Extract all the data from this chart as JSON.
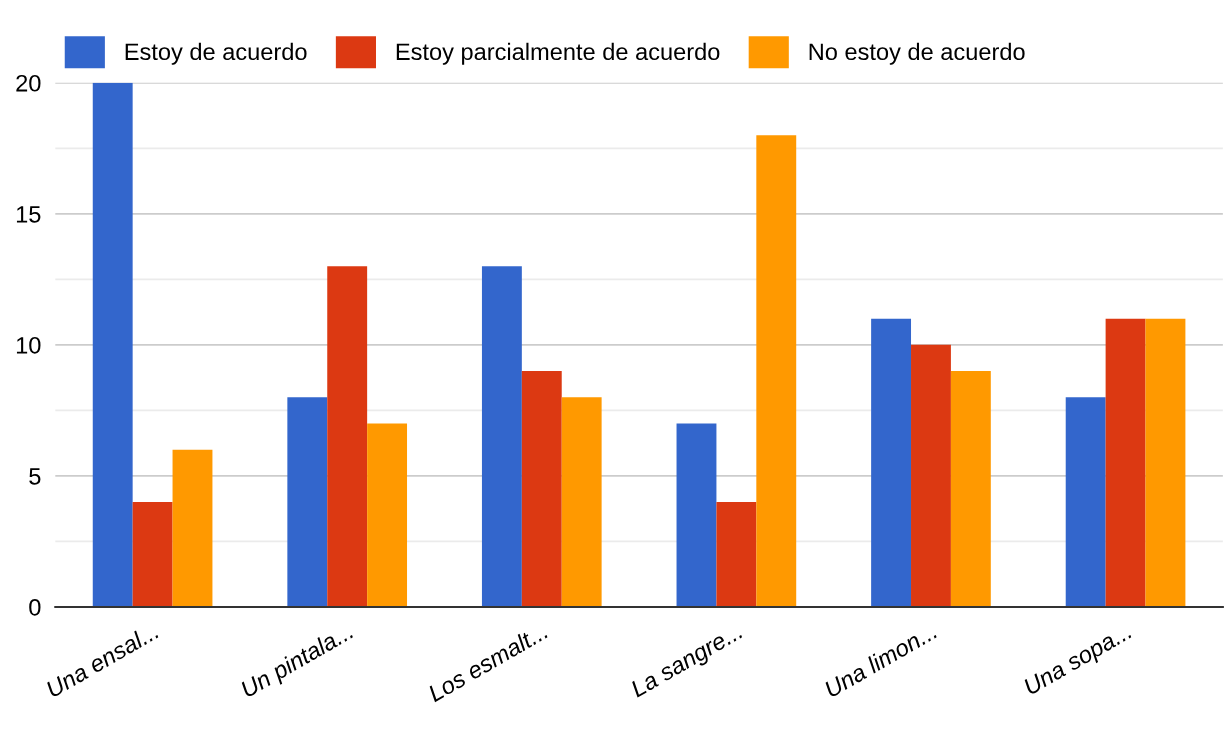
{
  "chart_data": {
    "type": "bar",
    "categories": [
      "Una ensal...",
      "Un pintala...",
      "Los esmalt...",
      "La sangre...",
      "Una limon...",
      "Una sopa..."
    ],
    "series": [
      {
        "name": "Estoy de acuerdo",
        "color": "#3366cc",
        "values": [
          20,
          8,
          13,
          7,
          11,
          8
        ]
      },
      {
        "name": "Estoy parcialmente de acuerdo",
        "color": "#dc3912",
        "values": [
          4,
          13,
          9,
          4,
          10,
          11
        ]
      },
      {
        "name": "No estoy de acuerdo",
        "color": "#ff9900",
        "values": [
          6,
          7,
          8,
          18,
          9,
          11
        ]
      }
    ],
    "ylim": [
      0,
      20
    ],
    "yticks": [
      0,
      {
        "value": 2.5,
        "label": null
      },
      5,
      {
        "value": 7.5,
        "label": null
      },
      10,
      {
        "value": 12.5,
        "label": null
      },
      15,
      {
        "value": 17.5,
        "label": null
      },
      20
    ],
    "grid": "y",
    "legend": "top left"
  }
}
